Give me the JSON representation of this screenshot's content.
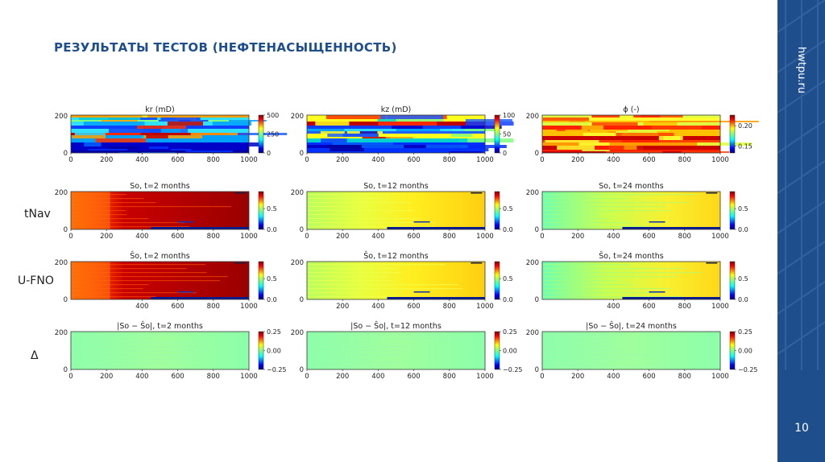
{
  "slide": {
    "title": "РЕЗУЛЬТАТЫ ТЕСТОВ (НЕФТЕНАСЫЩЕННОСТЬ)",
    "site": "hwtpu.ru",
    "page_number": "10"
  },
  "row_labels": [
    "tNav",
    "U-FNO",
    "Δ"
  ],
  "colors": {
    "brand": "#1f4e8c",
    "background": "#ffffff"
  },
  "panels": [
    {
      "title": "kr (mD)",
      "type": "perm",
      "cb_ticks": [
        "500",
        "250",
        "0"
      ],
      "yticks": [
        "200",
        "0"
      ],
      "xticks": [
        "0",
        "200",
        "400",
        "600",
        "800",
        "1000"
      ]
    },
    {
      "title": "kz (mD)",
      "type": "perm",
      "cb_ticks": [
        "100",
        "50",
        "0"
      ],
      "yticks": [
        "200",
        "0"
      ],
      "xticks": [
        "0",
        "200",
        "400",
        "600",
        "800",
        "1000"
      ]
    },
    {
      "title": "ϕ (-)",
      "type": "poro",
      "cb_ticks": [
        "0.20",
        "0.15"
      ],
      "yticks": [
        "200",
        "0"
      ],
      "xticks": [
        "0",
        "200",
        "400",
        "600",
        "800",
        "1000"
      ]
    },
    {
      "title": "So, t=2 months",
      "type": "so2",
      "cb_ticks": [
        "0.5",
        "0.0"
      ],
      "yticks": [
        "200",
        "0"
      ],
      "xticks": [
        "0",
        "200",
        "400",
        "600",
        "800",
        "1000"
      ]
    },
    {
      "title": "So, t=12 months",
      "type": "so12",
      "cb_ticks": [
        "0.5",
        "0.0"
      ],
      "yticks": [
        "200",
        "0"
      ],
      "xticks": [
        "0",
        "200",
        "400",
        "600",
        "800",
        "1000"
      ]
    },
    {
      "title": "So, t=24 months",
      "type": "so24",
      "cb_ticks": [
        "0.5",
        "0.0"
      ],
      "yticks": [
        "200",
        "0"
      ],
      "xticks": [
        "0",
        "200",
        "400",
        "600",
        "800",
        "1000"
      ]
    },
    {
      "title": "Ŝo, t=2 months",
      "type": "so2",
      "cb_ticks": [
        "0.5",
        "0.0"
      ],
      "yticks": [
        "200",
        "0"
      ],
      "xticks": [
        "400",
        "600",
        "800",
        "1000"
      ]
    },
    {
      "title": "Ŝo, t=12 months",
      "type": "so12",
      "cb_ticks": [
        "0.5",
        "0.0"
      ],
      "yticks": [
        "200",
        "0"
      ],
      "xticks": [
        "200",
        "400",
        "600",
        "800",
        "1000"
      ]
    },
    {
      "title": "Ŝo, t=24 months",
      "type": "so24",
      "cb_ticks": [
        "0.5",
        "0.0"
      ],
      "yticks": [
        "200",
        "0"
      ],
      "xticks": [
        "400",
        "600",
        "800",
        "1000"
      ]
    },
    {
      "title": "|So − Ŝo|, t=2 months",
      "type": "diff",
      "cb_ticks": [
        "0.25",
        "0.00",
        "−0.25"
      ],
      "yticks": [
        "200",
        "0"
      ],
      "xticks": [
        "0",
        "200",
        "400",
        "600",
        "800",
        "1000"
      ]
    },
    {
      "title": "|So − Ŝo|, t=12 months",
      "type": "diff",
      "cb_ticks": [
        "0.25",
        "0.00",
        "−0.25"
      ],
      "yticks": [
        "200",
        "0"
      ],
      "xticks": [
        "0",
        "200",
        "400",
        "600",
        "800",
        "1000"
      ]
    },
    {
      "title": "|So − Ŝo|, t=24 months",
      "type": "diff",
      "cb_ticks": [
        "0.25",
        "0.00",
        "−0.25"
      ],
      "yticks": [
        "200",
        "0"
      ],
      "xticks": [
        "0",
        "200",
        "400",
        "600",
        "800",
        "1000"
      ]
    }
  ]
}
